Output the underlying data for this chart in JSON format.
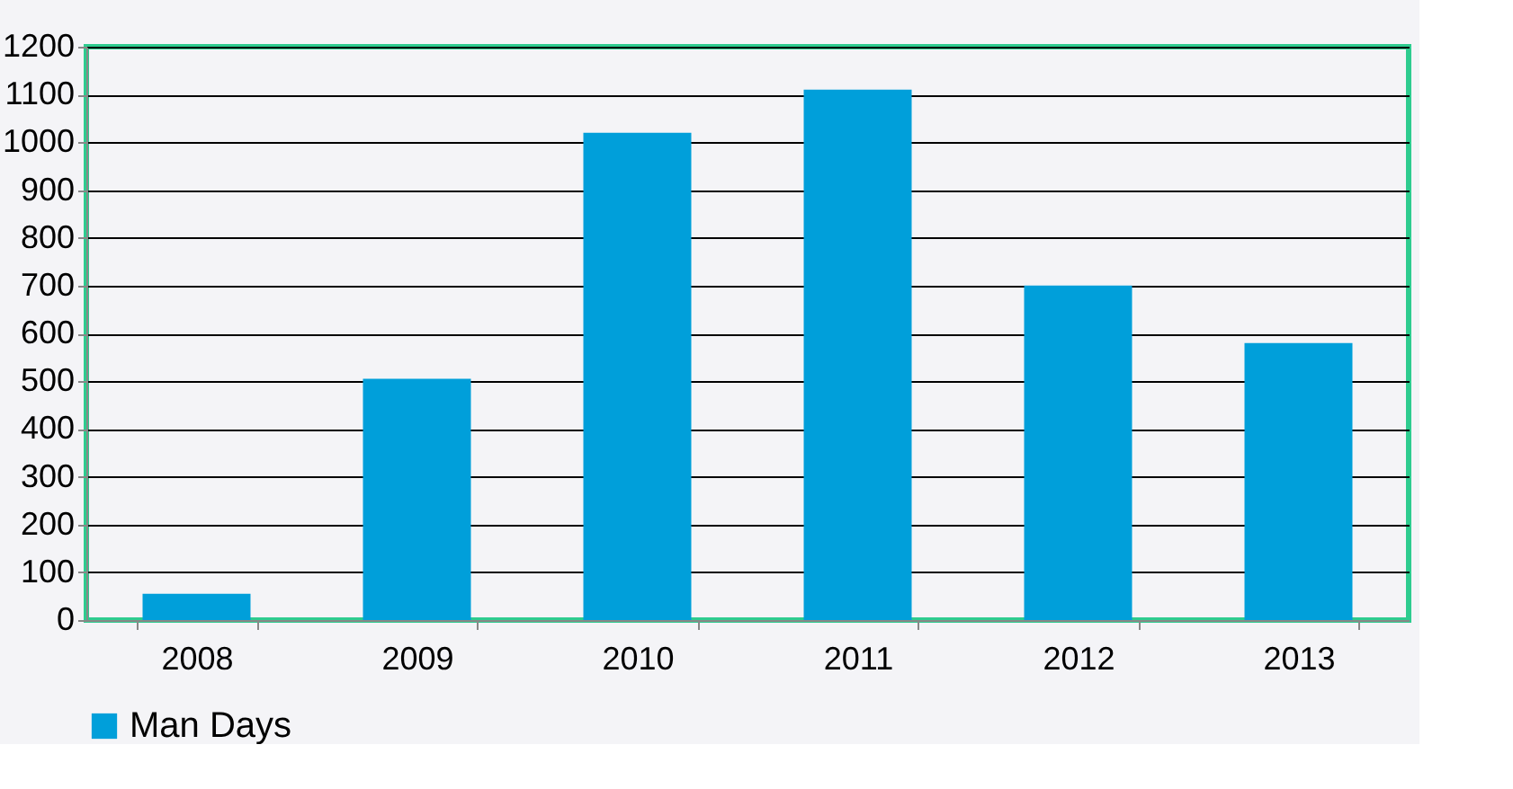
{
  "chart_data": {
    "type": "bar",
    "categories": [
      "2008",
      "2009",
      "2010",
      "2011",
      "2012",
      "2013"
    ],
    "series": [
      {
        "name": "Man Days",
        "color": "#009fda",
        "values": [
          55,
          505,
          1020,
          1110,
          700,
          580
        ]
      }
    ],
    "ylim": [
      0,
      1200
    ],
    "yticks": [
      0,
      100,
      200,
      300,
      400,
      500,
      600,
      700,
      800,
      900,
      1000,
      1100,
      1200
    ],
    "grid": "y",
    "legend": "bottom"
  }
}
